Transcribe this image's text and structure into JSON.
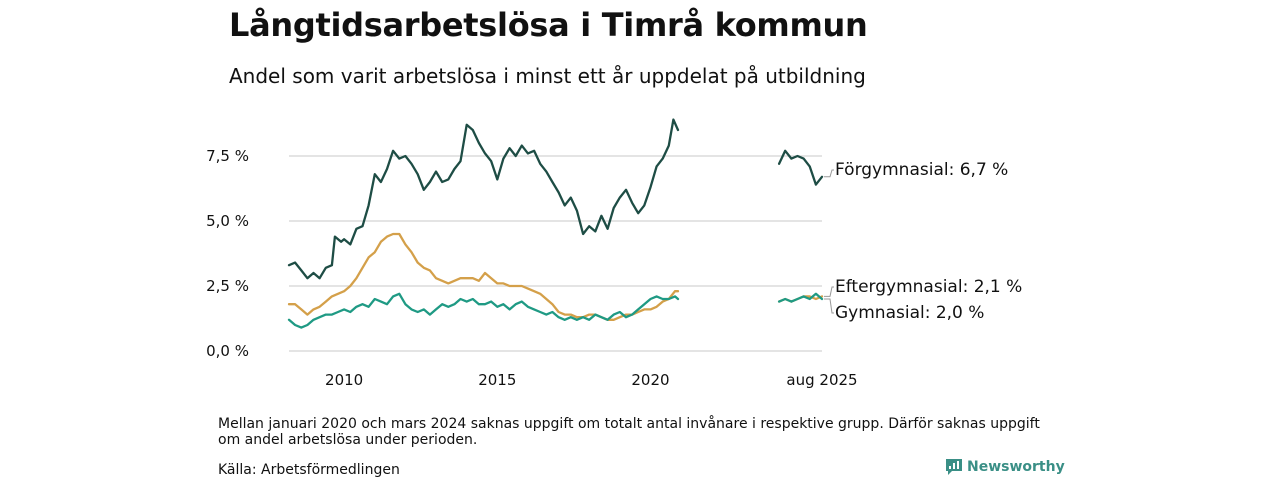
{
  "header": {
    "title": "Långtidsarbetslösa i Timrå kommun",
    "subtitle": "Andel som varit arbetslösa i minst ett år uppdelat på utbildning"
  },
  "footer": {
    "note": "Mellan januari 2020 och mars 2024 saknas uppgift om totalt antal invånare i respektive grupp. Därför saknas uppgift om andel arbetslösa under perioden.",
    "source": "Källa: Arbetsförmedlingen",
    "brand": "Newsworthy",
    "brand_color": "#3a8f86"
  },
  "chart_data": {
    "type": "line",
    "x_unit": "year",
    "x_range": [
      2008.2,
      2025.6
    ],
    "ylim": [
      0,
      9
    ],
    "y_ticks": [
      {
        "value": 0,
        "label": "0,0 %"
      },
      {
        "value": 2.5,
        "label": "2,5 %"
      },
      {
        "value": 5,
        "label": "5,0 %"
      },
      {
        "value": 7.5,
        "label": "7,5 %"
      }
    ],
    "x_ticks": [
      {
        "value": 2010,
        "label": "2010"
      },
      {
        "value": 2015,
        "label": "2015"
      },
      {
        "value": 2020,
        "label": "2020"
      },
      {
        "value": 2025.6,
        "label": "aug 2025"
      }
    ],
    "gap": [
      2020.9,
      2024.2
    ],
    "grid": true,
    "series": [
      {
        "name": "Förgymnasial",
        "end_label": "Förgymnasial: 6,7 %",
        "color": "#1e4d45",
        "points": [
          [
            2008.2,
            3.3
          ],
          [
            2008.4,
            3.4
          ],
          [
            2008.6,
            3.1
          ],
          [
            2008.8,
            2.8
          ],
          [
            2009.0,
            3.0
          ],
          [
            2009.2,
            2.8
          ],
          [
            2009.4,
            3.2
          ],
          [
            2009.6,
            3.3
          ],
          [
            2009.7,
            4.4
          ],
          [
            2009.9,
            4.2
          ],
          [
            2010.0,
            4.3
          ],
          [
            2010.2,
            4.1
          ],
          [
            2010.4,
            4.7
          ],
          [
            2010.6,
            4.8
          ],
          [
            2010.8,
            5.6
          ],
          [
            2011.0,
            6.8
          ],
          [
            2011.2,
            6.5
          ],
          [
            2011.4,
            7.0
          ],
          [
            2011.6,
            7.7
          ],
          [
            2011.8,
            7.4
          ],
          [
            2012.0,
            7.5
          ],
          [
            2012.2,
            7.2
          ],
          [
            2012.4,
            6.8
          ],
          [
            2012.6,
            6.2
          ],
          [
            2012.8,
            6.5
          ],
          [
            2013.0,
            6.9
          ],
          [
            2013.2,
            6.5
          ],
          [
            2013.4,
            6.6
          ],
          [
            2013.6,
            7.0
          ],
          [
            2013.8,
            7.3
          ],
          [
            2014.0,
            8.7
          ],
          [
            2014.2,
            8.5
          ],
          [
            2014.4,
            8.0
          ],
          [
            2014.6,
            7.6
          ],
          [
            2014.8,
            7.3
          ],
          [
            2015.0,
            6.6
          ],
          [
            2015.2,
            7.4
          ],
          [
            2015.4,
            7.8
          ],
          [
            2015.6,
            7.5
          ],
          [
            2015.8,
            7.9
          ],
          [
            2016.0,
            7.6
          ],
          [
            2016.2,
            7.7
          ],
          [
            2016.4,
            7.2
          ],
          [
            2016.6,
            6.9
          ],
          [
            2016.8,
            6.5
          ],
          [
            2017.0,
            6.1
          ],
          [
            2017.2,
            5.6
          ],
          [
            2017.4,
            5.9
          ],
          [
            2017.6,
            5.4
          ],
          [
            2017.8,
            4.5
          ],
          [
            2018.0,
            4.8
          ],
          [
            2018.2,
            4.6
          ],
          [
            2018.4,
            5.2
          ],
          [
            2018.6,
            4.7
          ],
          [
            2018.8,
            5.5
          ],
          [
            2019.0,
            5.9
          ],
          [
            2019.2,
            6.2
          ],
          [
            2019.4,
            5.7
          ],
          [
            2019.6,
            5.3
          ],
          [
            2019.8,
            5.6
          ],
          [
            2020.0,
            6.3
          ],
          [
            2020.2,
            7.1
          ],
          [
            2020.4,
            7.4
          ],
          [
            2020.6,
            7.9
          ],
          [
            2020.75,
            8.9
          ],
          [
            2020.9,
            8.5
          ],
          [
            2024.2,
            7.2
          ],
          [
            2024.4,
            7.7
          ],
          [
            2024.6,
            7.4
          ],
          [
            2024.8,
            7.5
          ],
          [
            2025.0,
            7.4
          ],
          [
            2025.2,
            7.1
          ],
          [
            2025.4,
            6.4
          ],
          [
            2025.6,
            6.7
          ]
        ]
      },
      {
        "name": "Eftergymnasial",
        "end_label": "Eftergymnasial: 2,1 %",
        "color": "#d4a04a",
        "points": [
          [
            2008.2,
            1.8
          ],
          [
            2008.4,
            1.8
          ],
          [
            2008.6,
            1.6
          ],
          [
            2008.8,
            1.4
          ],
          [
            2009.0,
            1.6
          ],
          [
            2009.2,
            1.7
          ],
          [
            2009.4,
            1.9
          ],
          [
            2009.6,
            2.1
          ],
          [
            2009.8,
            2.2
          ],
          [
            2010.0,
            2.3
          ],
          [
            2010.2,
            2.5
          ],
          [
            2010.4,
            2.8
          ],
          [
            2010.6,
            3.2
          ],
          [
            2010.8,
            3.6
          ],
          [
            2011.0,
            3.8
          ],
          [
            2011.2,
            4.2
          ],
          [
            2011.4,
            4.4
          ],
          [
            2011.6,
            4.5
          ],
          [
            2011.8,
            4.5
          ],
          [
            2012.0,
            4.1
          ],
          [
            2012.2,
            3.8
          ],
          [
            2012.4,
            3.4
          ],
          [
            2012.6,
            3.2
          ],
          [
            2012.8,
            3.1
          ],
          [
            2013.0,
            2.8
          ],
          [
            2013.2,
            2.7
          ],
          [
            2013.4,
            2.6
          ],
          [
            2013.6,
            2.7
          ],
          [
            2013.8,
            2.8
          ],
          [
            2014.0,
            2.8
          ],
          [
            2014.2,
            2.8
          ],
          [
            2014.4,
            2.7
          ],
          [
            2014.6,
            3.0
          ],
          [
            2014.8,
            2.8
          ],
          [
            2015.0,
            2.6
          ],
          [
            2015.2,
            2.6
          ],
          [
            2015.4,
            2.5
          ],
          [
            2015.6,
            2.5
          ],
          [
            2015.8,
            2.5
          ],
          [
            2016.0,
            2.4
          ],
          [
            2016.2,
            2.3
          ],
          [
            2016.4,
            2.2
          ],
          [
            2016.6,
            2.0
          ],
          [
            2016.8,
            1.8
          ],
          [
            2017.0,
            1.5
          ],
          [
            2017.2,
            1.4
          ],
          [
            2017.4,
            1.4
          ],
          [
            2017.6,
            1.3
          ],
          [
            2017.8,
            1.3
          ],
          [
            2018.0,
            1.4
          ],
          [
            2018.2,
            1.4
          ],
          [
            2018.4,
            1.3
          ],
          [
            2018.6,
            1.2
          ],
          [
            2018.8,
            1.2
          ],
          [
            2019.0,
            1.3
          ],
          [
            2019.2,
            1.4
          ],
          [
            2019.4,
            1.4
          ],
          [
            2019.6,
            1.5
          ],
          [
            2019.8,
            1.6
          ],
          [
            2020.0,
            1.6
          ],
          [
            2020.2,
            1.7
          ],
          [
            2020.4,
            1.9
          ],
          [
            2020.6,
            2.0
          ],
          [
            2020.8,
            2.3
          ],
          [
            2020.9,
            2.3
          ],
          [
            2024.2,
            1.9
          ],
          [
            2024.4,
            2.0
          ],
          [
            2024.6,
            1.9
          ],
          [
            2024.8,
            2.0
          ],
          [
            2025.0,
            2.1
          ],
          [
            2025.2,
            2.1
          ],
          [
            2025.4,
            2.0
          ],
          [
            2025.6,
            2.1
          ]
        ]
      },
      {
        "name": "Gymnasial",
        "end_label": "Gymnasial: 2,0 %",
        "color": "#1f9a84",
        "points": [
          [
            2008.2,
            1.2
          ],
          [
            2008.4,
            1.0
          ],
          [
            2008.6,
            0.9
          ],
          [
            2008.8,
            1.0
          ],
          [
            2009.0,
            1.2
          ],
          [
            2009.2,
            1.3
          ],
          [
            2009.4,
            1.4
          ],
          [
            2009.6,
            1.4
          ],
          [
            2009.8,
            1.5
          ],
          [
            2010.0,
            1.6
          ],
          [
            2010.2,
            1.5
          ],
          [
            2010.4,
            1.7
          ],
          [
            2010.6,
            1.8
          ],
          [
            2010.8,
            1.7
          ],
          [
            2011.0,
            2.0
          ],
          [
            2011.2,
            1.9
          ],
          [
            2011.4,
            1.8
          ],
          [
            2011.6,
            2.1
          ],
          [
            2011.8,
            2.2
          ],
          [
            2012.0,
            1.8
          ],
          [
            2012.2,
            1.6
          ],
          [
            2012.4,
            1.5
          ],
          [
            2012.6,
            1.6
          ],
          [
            2012.8,
            1.4
          ],
          [
            2013.0,
            1.6
          ],
          [
            2013.2,
            1.8
          ],
          [
            2013.4,
            1.7
          ],
          [
            2013.6,
            1.8
          ],
          [
            2013.8,
            2.0
          ],
          [
            2014.0,
            1.9
          ],
          [
            2014.2,
            2.0
          ],
          [
            2014.4,
            1.8
          ],
          [
            2014.6,
            1.8
          ],
          [
            2014.8,
            1.9
          ],
          [
            2015.0,
            1.7
          ],
          [
            2015.2,
            1.8
          ],
          [
            2015.4,
            1.6
          ],
          [
            2015.6,
            1.8
          ],
          [
            2015.8,
            1.9
          ],
          [
            2016.0,
            1.7
          ],
          [
            2016.2,
            1.6
          ],
          [
            2016.4,
            1.5
          ],
          [
            2016.6,
            1.4
          ],
          [
            2016.8,
            1.5
          ],
          [
            2017.0,
            1.3
          ],
          [
            2017.2,
            1.2
          ],
          [
            2017.4,
            1.3
          ],
          [
            2017.6,
            1.2
          ],
          [
            2017.8,
            1.3
          ],
          [
            2018.0,
            1.2
          ],
          [
            2018.2,
            1.4
          ],
          [
            2018.4,
            1.3
          ],
          [
            2018.6,
            1.2
          ],
          [
            2018.8,
            1.4
          ],
          [
            2019.0,
            1.5
          ],
          [
            2019.2,
            1.3
          ],
          [
            2019.4,
            1.4
          ],
          [
            2019.6,
            1.6
          ],
          [
            2019.8,
            1.8
          ],
          [
            2020.0,
            2.0
          ],
          [
            2020.2,
            2.1
          ],
          [
            2020.4,
            2.0
          ],
          [
            2020.6,
            2.0
          ],
          [
            2020.8,
            2.1
          ],
          [
            2020.9,
            2.0
          ],
          [
            2024.2,
            1.9
          ],
          [
            2024.4,
            2.0
          ],
          [
            2024.6,
            1.9
          ],
          [
            2024.8,
            2.0
          ],
          [
            2025.0,
            2.1
          ],
          [
            2025.2,
            2.0
          ],
          [
            2025.4,
            2.2
          ],
          [
            2025.6,
            2.0
          ]
        ]
      }
    ]
  }
}
